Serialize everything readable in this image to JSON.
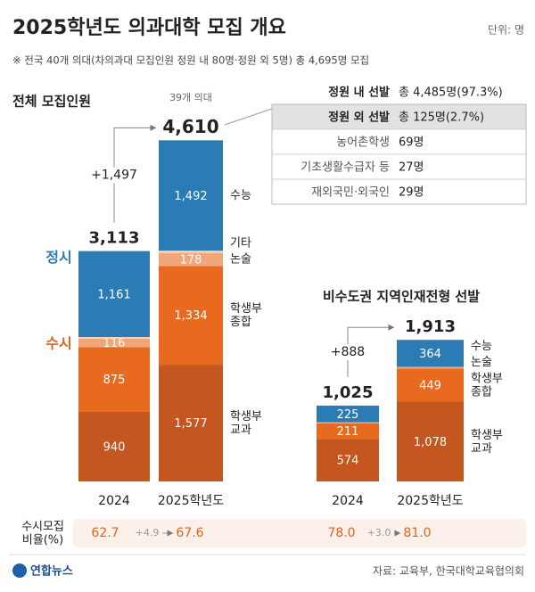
{
  "title": "2025학년도 의과대학 모집 개요",
  "unit": "단위: 명",
  "note": "※ 전국 40개 의대(차의과대 모집인원 정원 내 80명·정원 외 5명) 총 4,695명 모집",
  "chart_data": [
    {
      "type": "bar",
      "stacked": true,
      "title": "전체 모집인원",
      "subtitle": "39개 의대",
      "categories": [
        "2024",
        "2025학년도"
      ],
      "series": [
        {
          "name": "학생부\n교과",
          "color": "#c4561f",
          "values": [
            940,
            1577
          ],
          "value_labels": [
            "940",
            "1,577"
          ]
        },
        {
          "name": "학생부\n종합",
          "color": "#e86a1f",
          "values": [
            875,
            1334
          ],
          "value_labels": [
            "875",
            "1,334"
          ]
        },
        {
          "name": "논술",
          "color": "#f3a677",
          "values": [
            116,
            178
          ]
        },
        {
          "name": "기타",
          "color": "#f9d3b7",
          "values": [
            21,
            29
          ]
        },
        {
          "name": "수능",
          "color": "#2b7bb5",
          "values": [
            1161,
            1492
          ],
          "value_labels": [
            "1,161",
            "1,492"
          ]
        }
      ],
      "totals": [
        3113,
        4610
      ],
      "total_labels": [
        "3,113",
        "4,610"
      ],
      "change_label": "+1,497",
      "group_labels": [
        "정시",
        "수시"
      ]
    },
    {
      "type": "bar",
      "stacked": true,
      "title": "비수도권 지역인재전형 선발",
      "categories": [
        "2024",
        "2025학년도"
      ],
      "series": [
        {
          "name": "학생부\n교과",
          "color": "#c4561f",
          "values": [
            574,
            1078
          ],
          "value_labels": [
            "574",
            "1,078"
          ]
        },
        {
          "name": "학생부\n종합",
          "color": "#e86a1f",
          "values": [
            211,
            449
          ]
        },
        {
          "name": "논술",
          "color": "#f3a677",
          "values": [
            15,
            22
          ]
        },
        {
          "name": "수능",
          "color": "#2b7bb5",
          "values": [
            225,
            364
          ]
        }
      ],
      "totals": [
        1025,
        1913
      ],
      "total_labels": [
        "1,025",
        "1,913"
      ],
      "change_label": "+888"
    }
  ],
  "table": {
    "rows": [
      [
        "정원 내 선발",
        "총 4,485명(97.3%)"
      ],
      [
        "정원 외 선발",
        "총 125명(2.7%)"
      ],
      [
        "농어촌학생",
        "69명"
      ],
      [
        "기초생활수급자 등",
        "27명"
      ],
      [
        "재외국민·외국인",
        "29명"
      ]
    ]
  },
  "ratio": {
    "label": "수시모집\n비율(%)",
    "left": [
      "62.7",
      "+4.9",
      "67.6"
    ],
    "right": [
      "78.0",
      "+3.0",
      "81.0"
    ]
  },
  "source": "자료: 교육부, 한국대학교육협의회",
  "logo": "연합뉴스"
}
